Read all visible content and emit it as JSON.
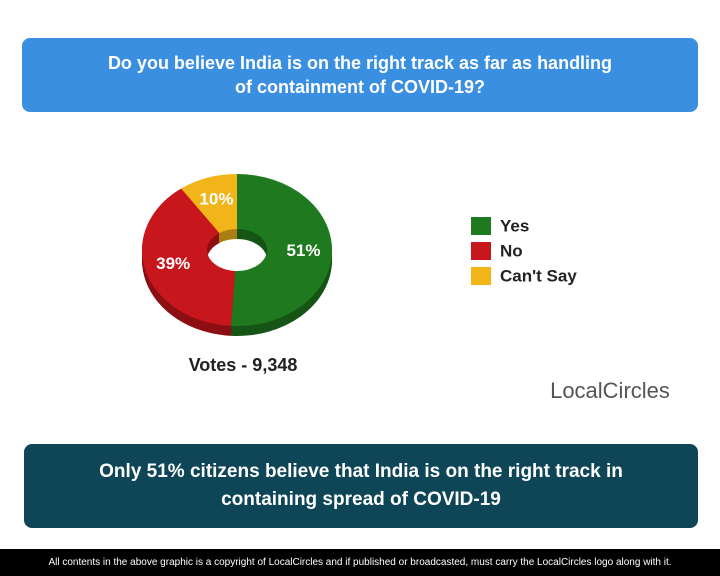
{
  "header": {
    "title": "Do you believe India is on the right track as far as handling of containment of COVID-19?"
  },
  "chart_data": {
    "type": "donut",
    "categories": [
      "Yes",
      "No",
      "Can't Say"
    ],
    "values": [
      51,
      39,
      10
    ],
    "value_labels": [
      "51%",
      "39%",
      "10%"
    ],
    "colors": [
      "#1f7a1f",
      "#c8161d",
      "#f1b419"
    ],
    "legend": "right",
    "note": "Votes - 9,348"
  },
  "logo": "LocalCircles",
  "conclusion": "Only 51% citizens believe that India is on the right track in containing spread of COVID-19",
  "footer": "All contents in the above graphic is a copyright of LocalCircles and if published or broadcasted, must carry the LocalCircles logo along with it."
}
